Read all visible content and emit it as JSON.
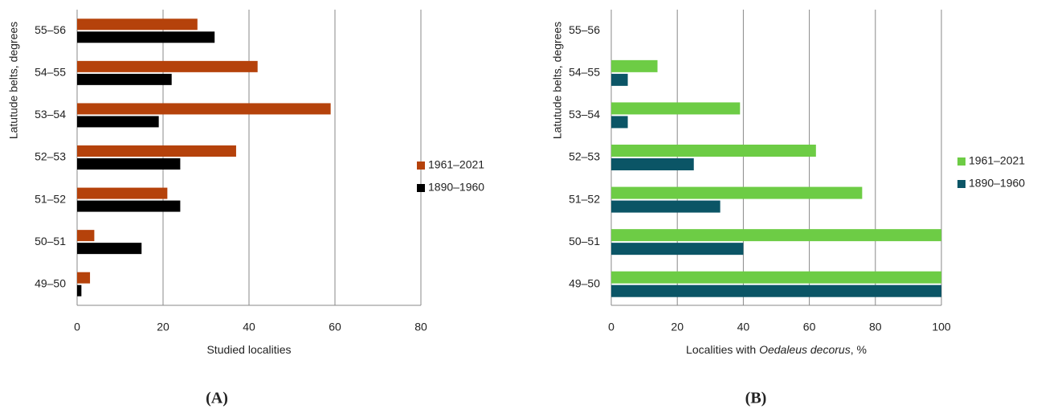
{
  "chart_data": [
    {
      "type": "bar",
      "orientation": "horizontal",
      "panel_label": "(A)",
      "y_label": "Latutude belts, degrees",
      "x_label": [
        "Studied localities"
      ],
      "categories": [
        "55–56",
        "54–55",
        "53–54",
        "52–53",
        "51–52",
        "50–51",
        "49–50"
      ],
      "series": [
        {
          "name": "1961–2021",
          "color": "#b5420b",
          "values": [
            28,
            42,
            59,
            37,
            21,
            4,
            3
          ]
        },
        {
          "name": "1890–1960",
          "color": "#000000",
          "values": [
            32,
            22,
            19,
            24,
            24,
            15,
            1
          ]
        }
      ],
      "xlim": [
        0,
        80
      ],
      "xticks": [
        0,
        20,
        40,
        60,
        80
      ],
      "grid": true,
      "legend": "right"
    },
    {
      "type": "bar",
      "orientation": "horizontal",
      "panel_label": "(B)",
      "y_label": "Latutude belts, degrees",
      "x_label": [
        "Localities with ",
        "Oedaleus decorus",
        ", %"
      ],
      "categories": [
        "55–56",
        "54–55",
        "53–54",
        "52–53",
        "51–52",
        "50–51",
        "49–50"
      ],
      "series": [
        {
          "name": "1961–2021",
          "color": "#6dcc45",
          "values": [
            0,
            14,
            39,
            62,
            76,
            100,
            100
          ]
        },
        {
          "name": "1890–1960",
          "color": "#0b5566",
          "values": [
            0,
            5,
            5,
            25,
            33,
            40,
            100
          ]
        }
      ],
      "xlim": [
        0,
        100
      ],
      "xticks": [
        0,
        20,
        40,
        60,
        80,
        100
      ],
      "grid": true,
      "legend": "right"
    }
  ]
}
